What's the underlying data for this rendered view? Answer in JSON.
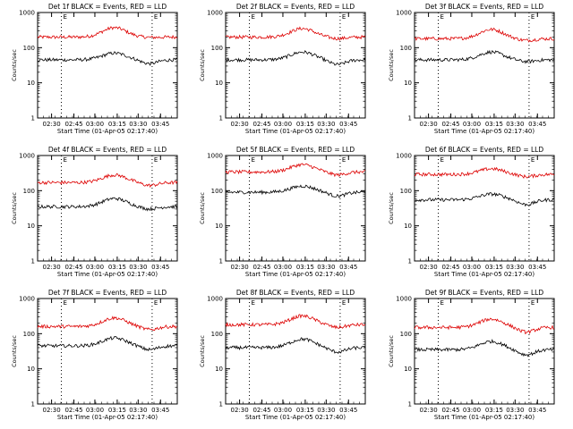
{
  "chart_data": [
    {
      "type": "line",
      "title": "Det 1f BLACK = Events, RED = LLD",
      "ylabel": "Counts/sec",
      "xlabel": "Start Time (01-Apr-05 02:17:40)",
      "yscale": "log",
      "ylim": [
        1,
        1000
      ],
      "yticks": [
        "1",
        "10",
        "100",
        "1000"
      ],
      "xticks": [
        "02:30",
        "02:45",
        "03:00",
        "03:15",
        "03:30",
        "03:45"
      ],
      "marker_labels": [
        "E",
        "E"
      ],
      "series": [
        {
          "name": "LLD",
          "color": "#dd0000",
          "base": 200,
          "peak": 370,
          "valley": 195
        },
        {
          "name": "Events",
          "color": "#000000",
          "base": 45,
          "peak": 70,
          "valley": 35
        }
      ]
    },
    {
      "type": "line",
      "title": "Det 2f BLACK = Events, RED = LLD",
      "ylabel": "Counts/sec",
      "xlabel": "Start Time (01-Apr-05 02:17:40)",
      "yscale": "log",
      "ylim": [
        1,
        1000
      ],
      "yticks": [
        "1",
        "10",
        "100",
        "1000"
      ],
      "xticks": [
        "02:30",
        "02:45",
        "03:00",
        "03:15",
        "03:30",
        "03:45"
      ],
      "marker_labels": [
        "E",
        "E"
      ],
      "series": [
        {
          "name": "LLD",
          "color": "#dd0000",
          "base": 200,
          "peak": 350,
          "valley": 180
        },
        {
          "name": "Events",
          "color": "#000000",
          "base": 45,
          "peak": 75,
          "valley": 33
        }
      ]
    },
    {
      "type": "line",
      "title": "Det 3f BLACK = Events, RED = LLD",
      "ylabel": "Counts/sec",
      "xlabel": "Start Time (01-Apr-05 02:17:40)",
      "yscale": "log",
      "ylim": [
        1,
        1000
      ],
      "yticks": [
        "1",
        "10",
        "100",
        "1000"
      ],
      "xticks": [
        "02:30",
        "02:45",
        "03:00",
        "03:15",
        "03:30",
        "03:45"
      ],
      "marker_labels": [
        "E",
        "E"
      ],
      "series": [
        {
          "name": "LLD",
          "color": "#dd0000",
          "base": 180,
          "peak": 330,
          "valley": 160
        },
        {
          "name": "Events",
          "color": "#000000",
          "base": 45,
          "peak": 75,
          "valley": 40
        }
      ]
    },
    {
      "type": "line",
      "title": "Det 4f BLACK = Events, RED = LLD",
      "ylabel": "Counts/sec",
      "xlabel": "Start Time (01-Apr-05 02:17:40)",
      "yscale": "log",
      "ylim": [
        1,
        1000
      ],
      "yticks": [
        "1",
        "10",
        "100",
        "1000"
      ],
      "xticks": [
        "02:30",
        "02:45",
        "03:00",
        "03:15",
        "03:30",
        "03:45"
      ],
      "marker_labels": [
        "E",
        "E"
      ],
      "series": [
        {
          "name": "LLD",
          "color": "#dd0000",
          "base": 170,
          "peak": 280,
          "valley": 140
        },
        {
          "name": "Events",
          "color": "#000000",
          "base": 35,
          "peak": 60,
          "valley": 30
        }
      ]
    },
    {
      "type": "line",
      "title": "Det 5f BLACK = Events, RED = LLD",
      "ylabel": "Counts/sec",
      "xlabel": "Start Time (01-Apr-05 02:17:40)",
      "yscale": "log",
      "ylim": [
        1,
        1000
      ],
      "yticks": [
        "1",
        "10",
        "100",
        "1000"
      ],
      "xticks": [
        "02:30",
        "02:45",
        "03:00",
        "03:15",
        "03:30",
        "03:45"
      ],
      "marker_labels": [
        "E",
        "E"
      ],
      "series": [
        {
          "name": "LLD",
          "color": "#dd0000",
          "base": 340,
          "peak": 550,
          "valley": 280
        },
        {
          "name": "Events",
          "color": "#000000",
          "base": 90,
          "peak": 135,
          "valley": 70
        }
      ]
    },
    {
      "type": "line",
      "title": "Det 6f BLACK = Events, RED = LLD",
      "ylabel": "Counts/sec",
      "xlabel": "Start Time (01-Apr-05 02:17:40)",
      "yscale": "log",
      "ylim": [
        1,
        1000
      ],
      "yticks": [
        "1",
        "10",
        "100",
        "1000"
      ],
      "xticks": [
        "02:30",
        "02:45",
        "03:00",
        "03:15",
        "03:30",
        "03:45"
      ],
      "marker_labels": [
        "E",
        "E"
      ],
      "series": [
        {
          "name": "LLD",
          "color": "#dd0000",
          "base": 290,
          "peak": 420,
          "valley": 250
        },
        {
          "name": "Events",
          "color": "#000000",
          "base": 55,
          "peak": 80,
          "valley": 40
        }
      ]
    },
    {
      "type": "line",
      "title": "Det 7f BLACK = Events, RED = LLD",
      "ylabel": "Counts/sec",
      "xlabel": "Start Time (01-Apr-05 02:17:40)",
      "yscale": "log",
      "ylim": [
        1,
        1000
      ],
      "yticks": [
        "1",
        "10",
        "100",
        "1000"
      ],
      "xticks": [
        "02:30",
        "02:45",
        "03:00",
        "03:15",
        "03:30",
        "03:45"
      ],
      "marker_labels": [
        "E",
        "E"
      ],
      "series": [
        {
          "name": "LLD",
          "color": "#dd0000",
          "base": 160,
          "peak": 280,
          "valley": 130
        },
        {
          "name": "Events",
          "color": "#000000",
          "base": 45,
          "peak": 75,
          "valley": 35
        }
      ]
    },
    {
      "type": "line",
      "title": "Det 8f BLACK = Events, RED = LLD",
      "ylabel": "Counts/sec",
      "xlabel": "Start Time (01-Apr-05 02:17:40)",
      "yscale": "log",
      "ylim": [
        1,
        1000
      ],
      "yticks": [
        "1",
        "10",
        "100",
        "1000"
      ],
      "xticks": [
        "02:30",
        "02:45",
        "03:00",
        "03:15",
        "03:30",
        "03:45"
      ],
      "marker_labels": [
        "E",
        "E"
      ],
      "series": [
        {
          "name": "LLD",
          "color": "#dd0000",
          "base": 180,
          "peak": 320,
          "valley": 150
        },
        {
          "name": "Events",
          "color": "#000000",
          "base": 40,
          "peak": 70,
          "valley": 30
        }
      ]
    },
    {
      "type": "line",
      "title": "Det 9f BLACK = Events, RED = LLD",
      "ylabel": "Counts/sec",
      "xlabel": "Start Time (01-Apr-05 02:17:40)",
      "yscale": "log",
      "ylim": [
        1,
        1000
      ],
      "yticks": [
        "1",
        "10",
        "100",
        "1000"
      ],
      "xticks": [
        "02:30",
        "02:45",
        "03:00",
        "03:15",
        "03:30",
        "03:45"
      ],
      "marker_labels": [
        "E",
        "E"
      ],
      "series": [
        {
          "name": "LLD",
          "color": "#dd0000",
          "base": 150,
          "peak": 260,
          "valley": 110
        },
        {
          "name": "Events",
          "color": "#000000",
          "base": 35,
          "peak": 60,
          "valley": 25
        }
      ]
    }
  ]
}
